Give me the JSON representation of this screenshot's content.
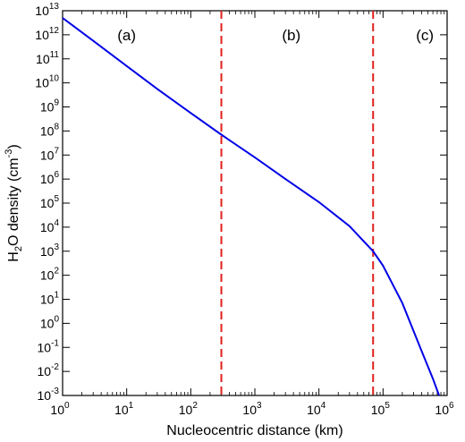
{
  "chart_data": {
    "type": "line",
    "xlabel": "Nucleocentric distance (km)",
    "ylabel": {
      "main": "H",
      "sub": "2",
      "mid": "O density (cm",
      "sup": "-3",
      "end": ")"
    },
    "x_scale": "log",
    "y_scale": "log",
    "xlim": [
      1,
      1000000
    ],
    "ylim": [
      0.001,
      10000000000000
    ],
    "x_tick_exponents": [
      0,
      1,
      2,
      3,
      4,
      5,
      6
    ],
    "y_tick_exponents": [
      -3,
      -2,
      -1,
      0,
      1,
      2,
      3,
      4,
      5,
      6,
      7,
      8,
      9,
      10,
      11,
      12,
      13
    ],
    "grid": false,
    "line_color": "#0000e6",
    "divider_color": "#e0201c",
    "series": [
      {
        "x": [
          1,
          3,
          10,
          30,
          100,
          300,
          1000,
          3000,
          10000,
          30000,
          70000,
          100000,
          200000,
          400000,
          600000,
          750000
        ],
        "y": [
          5000000000000,
          560000000000,
          50000000000,
          5600000000,
          560000000,
          70000000,
          8000000,
          1000000,
          110000,
          11000,
          1000,
          250,
          7,
          0.07,
          0.005,
          0.001
        ]
      }
    ],
    "vertical_lines": [
      300,
      70000
    ],
    "region_labels": [
      {
        "text": "(a)",
        "x": 10
      },
      {
        "text": "(b)",
        "x": 3700
      },
      {
        "text": "(c)",
        "x": 450000
      }
    ]
  }
}
